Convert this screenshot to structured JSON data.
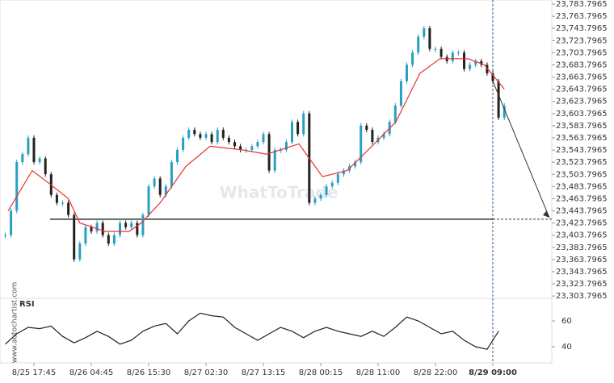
{
  "chart_data": {
    "type": "candlestick",
    "categories": [
      null,
      null,
      null,
      null,
      null,
      "8/25 17:45",
      null,
      null,
      null,
      null,
      null,
      null,
      null,
      null,
      null,
      "8/26 04:45",
      null,
      null,
      null,
      null,
      null,
      null,
      null,
      null,
      null,
      "8/26 15:30",
      null,
      null,
      null,
      null,
      null,
      null,
      null,
      null,
      null,
      "8/27 02:30",
      null,
      null,
      null,
      null,
      null,
      null,
      null,
      null,
      null,
      "8/27 13:15",
      null,
      null,
      null,
      null,
      null,
      null,
      null,
      null,
      null,
      "8/28 00:15",
      null,
      null,
      null,
      null,
      null,
      null,
      null,
      null,
      null,
      "8/28 11:00",
      null,
      null,
      null,
      null,
      null,
      null,
      null,
      null,
      null,
      "8/28 22:00",
      null,
      null,
      null,
      null,
      null,
      null,
      null,
      null,
      null,
      "8/29 09:00",
      null,
      null
    ],
    "values": [
      23404,
      23444,
      23524,
      23537,
      23564,
      23524,
      23530,
      23504,
      23470,
      23457,
      23457,
      23437,
      23364,
      23390,
      23417,
      23410,
      23424,
      23404,
      23390,
      23404,
      23424,
      23417,
      23424,
      23404,
      23437,
      23484,
      23497,
      23470,
      23484,
      23524,
      23544,
      23564,
      23577,
      23570,
      23564,
      23570,
      23557,
      23577,
      23564,
      23557,
      23550,
      23544,
      23544,
      23550,
      23557,
      23570,
      23510,
      23544,
      23544,
      23557,
      23590,
      23570,
      23604,
      23457,
      23464,
      23470,
      23484,
      23490,
      23504,
      23510,
      23517,
      23524,
      23584,
      23577,
      23557,
      23564,
      23570,
      23590,
      23617,
      23657,
      23684,
      23704,
      23730,
      23744,
      23710,
      23710,
      23697,
      23690,
      23704,
      23704,
      23677,
      23684,
      23690,
      23684,
      23670,
      23657,
      23597,
      23617
    ],
    "up_color": "#2a9fc4",
    "down_color": "#222222",
    "ma": {
      "color": "#e8312f",
      "x": [
        0.5,
        4.7,
        7.5,
        11,
        13,
        17.4,
        21.6,
        23.7,
        27,
        31.5,
        35.7,
        41.3,
        45.6,
        51.2,
        55.3,
        59.6,
        63.9,
        68.1,
        72.3,
        75.8,
        80.7,
        83.5,
        87
      ],
      "values": [
        23444,
        23510,
        23490,
        23464,
        23424,
        23410,
        23410,
        23424,
        23457,
        23517,
        23550,
        23544,
        23537,
        23554,
        23500,
        23510,
        23550,
        23590,
        23670,
        23694,
        23694,
        23684,
        23644
      ]
    },
    "support_level": 23430,
    "ylim": [
      23300,
      23790.5
    ],
    "yticks": [
      {
        "value": 23303.7965,
        "label": "23,303.7965"
      },
      {
        "value": 23323.7965,
        "label": "23,323.7965"
      },
      {
        "value": 23343.7965,
        "label": "23,343.7965"
      },
      {
        "value": 23363.7965,
        "label": "23,363.7965"
      },
      {
        "value": 23383.7965,
        "label": "23,383.7965"
      },
      {
        "value": 23403.7965,
        "label": "23,403.7965"
      },
      {
        "value": 23423.7965,
        "label": "23,423.7965"
      },
      {
        "value": 23443.7965,
        "label": "23,443.7965"
      },
      {
        "value": 23463.7965,
        "label": "23,463.7965"
      },
      {
        "value": 23483.7965,
        "label": "23,483.7965"
      },
      {
        "value": 23503.7965,
        "label": "23,503.7965"
      },
      {
        "value": 23523.7965,
        "label": "23,523.7965"
      },
      {
        "value": 23543.7965,
        "label": "23,543.7965"
      },
      {
        "value": 23563.7965,
        "label": "23,563.7965"
      },
      {
        "value": 23583.7965,
        "label": "23,583.7965"
      },
      {
        "value": 23603.7965,
        "label": "23,603.7965"
      },
      {
        "value": 23623.7965,
        "label": "23,623.7965"
      },
      {
        "value": 23643.7965,
        "label": "23,643.7965"
      },
      {
        "value": 23663.7965,
        "label": "23,663.7965"
      },
      {
        "value": 23683.7965,
        "label": "23,683.7965"
      },
      {
        "value": 23703.7965,
        "label": "23,703.7965"
      },
      {
        "value": 23723.7965,
        "label": "23,723.7965"
      },
      {
        "value": 23743.7965,
        "label": "23,743.7965"
      },
      {
        "value": 23763.7965,
        "label": "23,763.7965"
      },
      {
        "value": 23783.7965,
        "label": "23,783.7965"
      }
    ],
    "rsi": {
      "label": "RSI",
      "color": "#222222",
      "x": [
        0,
        2,
        4,
        6,
        8,
        10,
        12,
        14,
        16,
        18,
        20,
        22,
        24,
        26,
        28,
        30,
        32,
        34,
        36,
        38,
        40,
        42,
        44,
        46,
        48,
        50,
        52,
        54,
        56,
        58,
        60,
        62,
        64,
        66,
        68,
        70,
        72,
        74,
        76,
        78,
        80,
        82,
        84,
        86
      ],
      "values": [
        42,
        50,
        55,
        54,
        56,
        48,
        43,
        47,
        52,
        48,
        42,
        45,
        52,
        56,
        58,
        50,
        60,
        66,
        64,
        63,
        55,
        50,
        45,
        50,
        55,
        52,
        47,
        52,
        55,
        52,
        50,
        48,
        52,
        48,
        55,
        63,
        60,
        55,
        50,
        52,
        45,
        40,
        38,
        52
      ],
      "ylim": [
        27.5,
        77.5
      ],
      "yticks": [
        40,
        60
      ]
    },
    "watermark": "WhatToTrade",
    "source": "www.autochartist.com"
  }
}
